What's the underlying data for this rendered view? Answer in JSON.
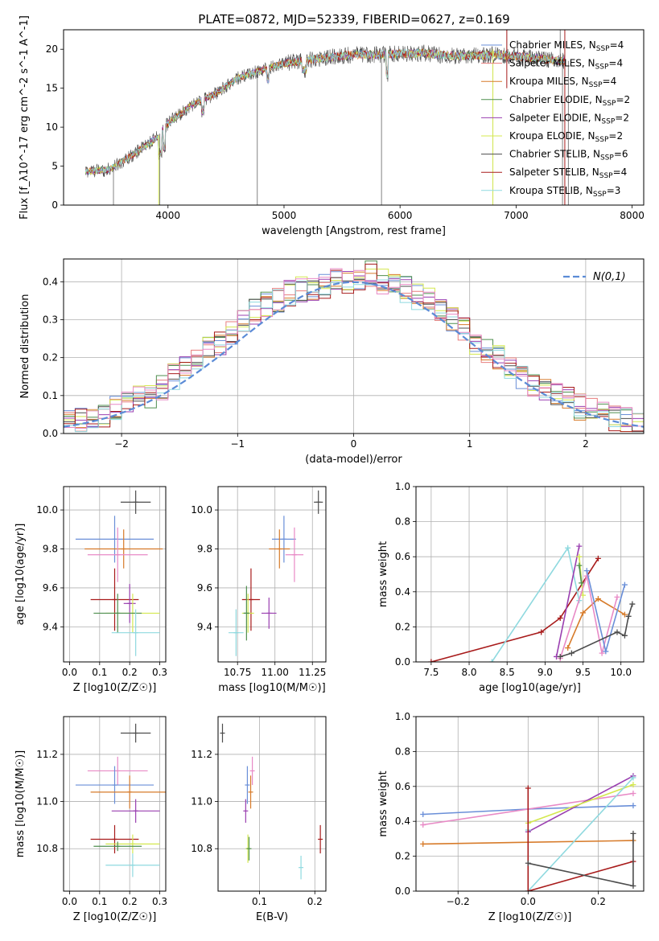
{
  "page_title": "PLATE=0872, MJD=52339, FIBERID=0627, z=0.169",
  "colors": {
    "chabrier_miles": "#6a8fd8",
    "salpeter_miles": "#e87d7d",
    "kroupa_miles": "#d77b2a",
    "chabrier_elodie": "#4f8f4f",
    "salpeter_elodie": "#9a3fb0",
    "kroupa_elodie": "#d4e84f",
    "chabrier_stelib": "#4d4d4d",
    "salpeter_stelib": "#a81b1b",
    "kroupa_stelib": "#8fd9df",
    "pink": "#e88ac6",
    "normal_fit": "#5b8bd6"
  },
  "chart_data": [
    {
      "type": "line",
      "title": "PLATE=0872, MJD=52339, FIBERID=0627, z=0.169",
      "xlabel": "wavelength [Angstrom, rest frame]",
      "ylabel": "Flux [f_λ10^-17 erg cm^-2 s^-1 A^-1]",
      "xlim": [
        3100,
        8100
      ],
      "ylim": [
        0,
        22.5
      ],
      "xticks": [
        4000,
        5000,
        6000,
        7000,
        8000
      ],
      "yticks": [
        0,
        5,
        10,
        15,
        20
      ],
      "grid": false,
      "legend_position": "right",
      "legend": [
        "Chabrier MILES, N_SSP=4",
        "Salpeter MILES, N_SSP=4",
        "Kroupa MILES, N_SSP=4",
        "Chabrier ELODIE, N_SSP=2",
        "Salpeter ELODIE, N_SSP=2",
        "Kroupa ELODIE, N_SSP=2",
        "Chabrier STELIB, N_SSP=6",
        "Salpeter STELIB, N_SSP=4",
        "Kroupa STELIB, N_SSP=3"
      ],
      "continuum": {
        "x": [
          3290,
          3500,
          3700,
          3900,
          4000,
          4200,
          4400,
          4600,
          4800,
          5000,
          5200,
          5400,
          5600,
          5800,
          6000,
          6200,
          6400,
          6600,
          6800,
          7000,
          7200,
          7400
        ],
        "y": [
          4.3,
          4.6,
          6.5,
          8.6,
          10.5,
          12.8,
          14.2,
          16.3,
          17.3,
          18.2,
          18.6,
          19.0,
          19.3,
          19.3,
          19.4,
          19.5,
          19.2,
          19.1,
          19.3,
          19.1,
          18.8,
          18.5
        ]
      }
    },
    {
      "type": "line",
      "title": "",
      "xlabel": "(data-model)/error",
      "ylabel": "Normed distribution",
      "xlim": [
        -2.5,
        2.5
      ],
      "ylim": [
        0,
        0.46
      ],
      "xticks": [
        -2,
        -1,
        0,
        1,
        2
      ],
      "yticks": [
        0.0,
        0.1,
        0.2,
        0.3,
        0.4
      ],
      "grid": true,
      "legend_position": "top-right",
      "legend": [
        "N(0,1)"
      ],
      "series_base": {
        "x": [
          -2.45,
          -2.35,
          -2.25,
          -2.15,
          -2.05,
          -1.95,
          -1.85,
          -1.75,
          -1.65,
          -1.55,
          -1.45,
          -1.35,
          -1.25,
          -1.15,
          -1.05,
          -0.95,
          -0.85,
          -0.75,
          -0.65,
          -0.55,
          -0.45,
          -0.35,
          -0.25,
          -0.15,
          -0.05,
          0.05,
          0.15,
          0.25,
          0.35,
          0.45,
          0.55,
          0.65,
          0.75,
          0.85,
          0.95,
          1.05,
          1.15,
          1.25,
          1.35,
          1.45,
          1.55,
          1.65,
          1.75,
          1.85,
          1.95,
          2.05,
          2.15,
          2.25,
          2.35,
          2.45
        ],
        "y": [
          0.03,
          0.035,
          0.04,
          0.05,
          0.07,
          0.09,
          0.1,
          0.1,
          0.12,
          0.15,
          0.18,
          0.2,
          0.22,
          0.24,
          0.27,
          0.3,
          0.32,
          0.34,
          0.35,
          0.37,
          0.38,
          0.38,
          0.39,
          0.4,
          0.4,
          0.4,
          0.42,
          0.4,
          0.39,
          0.38,
          0.36,
          0.35,
          0.33,
          0.3,
          0.27,
          0.24,
          0.22,
          0.2,
          0.17,
          0.15,
          0.12,
          0.11,
          0.1,
          0.09,
          0.07,
          0.06,
          0.05,
          0.04,
          0.035,
          0.03
        ]
      }
    },
    {
      "type": "scatter",
      "xlabel": "Z [log10(Z/Z☉)]",
      "ylabel": "age  [log10(age/yr)]",
      "xlim": [
        -0.02,
        0.32
      ],
      "ylim": [
        9.22,
        10.12
      ],
      "xticks": [
        0.0,
        0.1,
        0.2,
        0.3
      ],
      "yticks": [
        9.4,
        9.6,
        9.8,
        10.0
      ],
      "grid": true,
      "points": [
        {
          "x": 0.22,
          "y": 10.04,
          "xerr": 0.05,
          "yerr": 0.06,
          "c": "chabrier_stelib"
        },
        {
          "x": 0.15,
          "y": 9.85,
          "xerr": 0.13,
          "yerr": 0.12,
          "c": "chabrier_miles"
        },
        {
          "x": 0.18,
          "y": 9.8,
          "xerr": 0.13,
          "yerr": 0.1,
          "c": "kroupa_miles"
        },
        {
          "x": 0.16,
          "y": 9.77,
          "xerr": 0.1,
          "yerr": 0.14,
          "c": "pink"
        },
        {
          "x": 0.15,
          "y": 9.54,
          "xerr": 0.08,
          "yerr": 0.16,
          "c": "salpeter_stelib"
        },
        {
          "x": 0.2,
          "y": 9.52,
          "xerr": 0.02,
          "yerr": 0.1,
          "c": "salpeter_elodie"
        },
        {
          "x": 0.21,
          "y": 9.47,
          "xerr": 0.09,
          "yerr": 0.1,
          "c": "kroupa_elodie"
        },
        {
          "x": 0.16,
          "y": 9.47,
          "xerr": 0.08,
          "yerr": 0.1,
          "c": "chabrier_elodie"
        },
        {
          "x": 0.22,
          "y": 9.37,
          "xerr": 0.08,
          "yerr": 0.12,
          "c": "kroupa_stelib"
        }
      ]
    },
    {
      "type": "scatter",
      "xlabel": "mass [log10(M/M☉)]",
      "ylabel": "",
      "xlim": [
        10.62,
        11.34
      ],
      "ylim": [
        9.22,
        10.12
      ],
      "xticks": [
        10.75,
        11.0,
        11.25
      ],
      "yticks": [
        9.4,
        9.6,
        9.8,
        10.0
      ],
      "grid": true,
      "points": [
        {
          "x": 11.29,
          "y": 10.04,
          "xerr": 0.03,
          "yerr": 0.06,
          "c": "chabrier_stelib"
        },
        {
          "x": 11.06,
          "y": 9.85,
          "xerr": 0.08,
          "yerr": 0.12,
          "c": "chabrier_miles"
        },
        {
          "x": 11.03,
          "y": 9.8,
          "xerr": 0.07,
          "yerr": 0.1,
          "c": "kroupa_miles"
        },
        {
          "x": 11.13,
          "y": 9.77,
          "xerr": 0.06,
          "yerr": 0.14,
          "c": "pink"
        },
        {
          "x": 10.84,
          "y": 9.54,
          "xerr": 0.06,
          "yerr": 0.16,
          "c": "salpeter_stelib"
        },
        {
          "x": 10.96,
          "y": 9.47,
          "xerr": 0.05,
          "yerr": 0.08,
          "c": "salpeter_elodie"
        },
        {
          "x": 10.82,
          "y": 9.47,
          "xerr": 0.04,
          "yerr": 0.1,
          "c": "kroupa_elodie"
        },
        {
          "x": 10.81,
          "y": 9.47,
          "xerr": 0.02,
          "yerr": 0.14,
          "c": "chabrier_elodie"
        },
        {
          "x": 10.74,
          "y": 9.37,
          "xerr": 0.05,
          "yerr": 0.12,
          "c": "kroupa_stelib"
        }
      ]
    },
    {
      "type": "line",
      "xlabel": "age  [log10(age/yr)]",
      "ylabel": "mass weight",
      "xlim": [
        7.3,
        10.3
      ],
      "ylim": [
        0,
        1.0
      ],
      "xticks": [
        7.5,
        8.0,
        8.5,
        9.0,
        9.5,
        10.0
      ],
      "yticks": [
        0.0,
        0.2,
        0.4,
        0.6,
        0.8,
        1.0
      ],
      "grid": true,
      "series": [
        {
          "c": "salpeter_stelib",
          "x": [
            7.5,
            8.95,
            9.2,
            9.7
          ],
          "y": [
            0.0,
            0.17,
            0.25,
            0.59
          ]
        },
        {
          "c": "kroupa_stelib",
          "x": [
            8.3,
            9.3,
            9.45
          ],
          "y": [
            0.0,
            0.65,
            0.35
          ]
        },
        {
          "c": "salpeter_elodie",
          "x": [
            9.15,
            9.45
          ],
          "y": [
            0.03,
            0.66
          ]
        },
        {
          "c": "kroupa_elodie",
          "x": [
            9.45,
            9.5
          ],
          "y": [
            0.6,
            0.38
          ]
        },
        {
          "c": "chabrier_elodie",
          "x": [
            9.45,
            9.48
          ],
          "y": [
            0.55,
            0.45
          ]
        },
        {
          "c": "kroupa_miles",
          "x": [
            9.3,
            9.5,
            9.7,
            10.05
          ],
          "y": [
            0.08,
            0.28,
            0.36,
            0.27
          ]
        },
        {
          "c": "pink",
          "x": [
            9.2,
            9.55,
            9.75,
            9.95
          ],
          "y": [
            0.02,
            0.49,
            0.05,
            0.37
          ]
        },
        {
          "c": "chabrier_miles",
          "x": [
            9.55,
            9.8,
            10.05
          ],
          "y": [
            0.52,
            0.06,
            0.44
          ]
        },
        {
          "c": "chabrier_stelib",
          "x": [
            9.2,
            9.35,
            9.95,
            10.05,
            10.1,
            10.15
          ],
          "y": [
            0.03,
            0.05,
            0.17,
            0.15,
            0.26,
            0.33
          ]
        }
      ]
    },
    {
      "type": "scatter",
      "xlabel": "Z [log10(Z/Z☉)]",
      "ylabel": "mass [log10(M/M☉)]",
      "xlim": [
        -0.02,
        0.32
      ],
      "ylim": [
        10.62,
        11.36
      ],
      "xticks": [
        0.0,
        0.1,
        0.2,
        0.3
      ],
      "yticks": [
        10.8,
        11.0,
        11.2
      ],
      "grid": true,
      "points": [
        {
          "x": 0.22,
          "y": 11.29,
          "xerr": 0.05,
          "yerr": 0.04,
          "c": "chabrier_stelib"
        },
        {
          "x": 0.16,
          "y": 11.13,
          "xerr": 0.1,
          "yerr": 0.06,
          "c": "pink"
        },
        {
          "x": 0.15,
          "y": 11.07,
          "xerr": 0.13,
          "yerr": 0.08,
          "c": "chabrier_miles"
        },
        {
          "x": 0.2,
          "y": 11.04,
          "xerr": 0.13,
          "yerr": 0.07,
          "c": "kroupa_miles"
        },
        {
          "x": 0.22,
          "y": 10.96,
          "xerr": 0.08,
          "yerr": 0.05,
          "c": "salpeter_elodie"
        },
        {
          "x": 0.15,
          "y": 10.84,
          "xerr": 0.08,
          "yerr": 0.06,
          "c": "salpeter_stelib"
        },
        {
          "x": 0.21,
          "y": 10.82,
          "xerr": 0.09,
          "yerr": 0.04,
          "c": "kroupa_elodie"
        },
        {
          "x": 0.16,
          "y": 10.81,
          "xerr": 0.08,
          "yerr": 0.02,
          "c": "chabrier_elodie"
        },
        {
          "x": 0.21,
          "y": 10.73,
          "xerr": 0.09,
          "yerr": 0.05,
          "c": "kroupa_stelib"
        }
      ]
    },
    {
      "type": "scatter",
      "xlabel": "E(B-V)",
      "ylabel": "",
      "xlim": [
        0.025,
        0.22
      ],
      "ylim": [
        10.62,
        11.36
      ],
      "xticks": [
        0.1,
        0.2
      ],
      "yticks": [
        10.8,
        11.0,
        11.2
      ],
      "grid": true,
      "points": [
        {
          "x": 0.033,
          "y": 11.29,
          "xerr": 0,
          "yerr": 0.04,
          "c": "chabrier_stelib"
        },
        {
          "x": 0.087,
          "y": 11.13,
          "xerr": 0,
          "yerr": 0.06,
          "c": "pink"
        },
        {
          "x": 0.078,
          "y": 11.07,
          "xerr": 0,
          "yerr": 0.08,
          "c": "chabrier_miles"
        },
        {
          "x": 0.084,
          "y": 11.04,
          "xerr": 0,
          "yerr": 0.07,
          "c": "kroupa_miles"
        },
        {
          "x": 0.075,
          "y": 10.96,
          "xerr": 0,
          "yerr": 0.05,
          "c": "salpeter_elodie"
        },
        {
          "x": 0.21,
          "y": 10.84,
          "xerr": 0,
          "yerr": 0.06,
          "c": "salpeter_stelib"
        },
        {
          "x": 0.079,
          "y": 10.8,
          "xerr": 0,
          "yerr": 0.06,
          "c": "kroupa_elodie"
        },
        {
          "x": 0.081,
          "y": 10.8,
          "xerr": 0,
          "yerr": 0.05,
          "c": "chabrier_elodie"
        },
        {
          "x": 0.175,
          "y": 10.72,
          "xerr": 0,
          "yerr": 0.05,
          "c": "kroupa_stelib"
        }
      ]
    },
    {
      "type": "line",
      "xlabel": "Z [log10(Z/Z☉)]",
      "ylabel": "mass weight",
      "xlim": [
        -0.32,
        0.33
      ],
      "ylim": [
        0,
        1.0
      ],
      "xticks": [
        -0.2,
        0.0,
        0.2
      ],
      "yticks": [
        0.0,
        0.2,
        0.4,
        0.6,
        0.8,
        1.0
      ],
      "grid": true,
      "series": [
        {
          "c": "chabrier_miles",
          "x": [
            -0.3,
            0.0,
            0.3
          ],
          "y": [
            0.44,
            0.47,
            0.49
          ]
        },
        {
          "c": "pink",
          "x": [
            -0.3,
            0.3
          ],
          "y": [
            0.38,
            0.56
          ]
        },
        {
          "c": "kroupa_miles",
          "x": [
            -0.3,
            0.3
          ],
          "y": [
            0.27,
            0.29
          ]
        },
        {
          "c": "salpeter_elodie",
          "x": [
            0.0,
            0.3
          ],
          "y": [
            0.34,
            0.66
          ]
        },
        {
          "c": "kroupa_elodie",
          "x": [
            0.0,
            0.3
          ],
          "y": [
            0.39,
            0.61
          ]
        },
        {
          "c": "kroupa_stelib",
          "x": [
            0.0,
            0.0,
            0.3
          ],
          "y": [
            0.35,
            0.0,
            0.65
          ]
        },
        {
          "c": "salpeter_stelib",
          "x": [
            0.0,
            0.0,
            0.3
          ],
          "y": [
            0.59,
            0.0,
            0.17
          ]
        },
        {
          "c": "chabrier_stelib",
          "x": [
            0.0,
            0.3,
            0.3
          ],
          "y": [
            0.16,
            0.03,
            0.33
          ]
        }
      ]
    }
  ]
}
